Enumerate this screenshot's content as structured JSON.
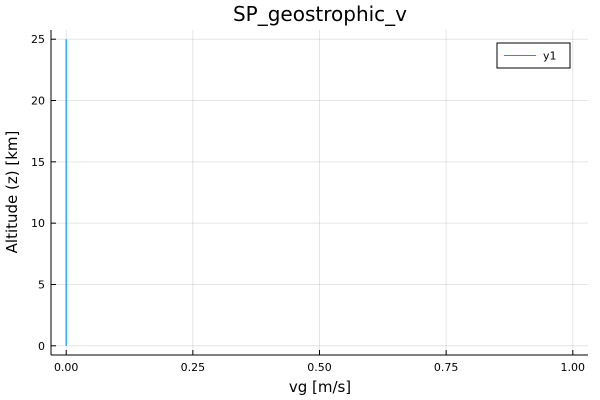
{
  "chart_data": {
    "type": "line",
    "title": "SP_geostrophic_v",
    "xlabel": "vg [m/s]",
    "ylabel": "Altitude (z) [km]",
    "xlim": [
      -0.03,
      1.03
    ],
    "ylim": [
      -0.75,
      25.75
    ],
    "x_ticks": [
      0.0,
      0.25,
      0.5,
      0.75,
      1.0
    ],
    "x_tick_labels": [
      "0.00",
      "0.25",
      "0.50",
      "0.75",
      "1.00"
    ],
    "y_ticks": [
      0,
      5,
      10,
      15,
      20,
      25
    ],
    "y_tick_labels": [
      "0",
      "5",
      "10",
      "15",
      "20",
      "25"
    ],
    "grid": true,
    "legend_position": "top-right",
    "series": [
      {
        "name": "y1",
        "color": "#009af9",
        "x": [
          0,
          0
        ],
        "y": [
          0,
          25
        ]
      }
    ]
  }
}
